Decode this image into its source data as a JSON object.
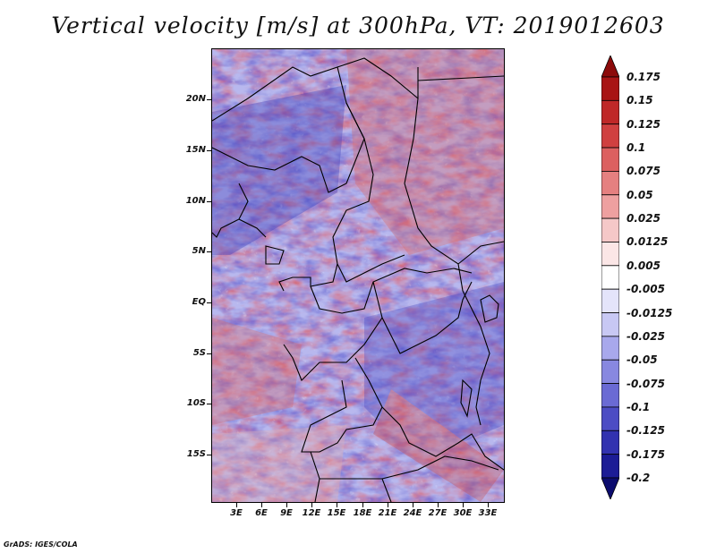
{
  "title": "Vertical velocity [m/s] at 300hPa, VT: 2019012603",
  "footer": "GrADS: IGES/COLA",
  "lat_labels": [
    "20N",
    "15N",
    "10N",
    "5N",
    "EQ",
    "5S",
    "10S",
    "15S"
  ],
  "lon_labels": [
    "3E",
    "6E",
    "9E",
    "12E",
    "15E",
    "18E",
    "21E",
    "24E",
    "27E",
    "30E",
    "33E"
  ],
  "colorbar": {
    "labels": [
      "0.175",
      "0.15",
      "0.125",
      "0.1",
      "0.075",
      "0.05",
      "0.025",
      "0.0125",
      "0.005",
      "-0.005",
      "-0.0125",
      "-0.025",
      "-0.05",
      "-0.075",
      "-0.1",
      "-0.125",
      "-0.175",
      "-0.2"
    ],
    "colors": [
      "#8c0a0a",
      "#a81414",
      "#bf2828",
      "#d04040",
      "#dc6060",
      "#e58080",
      "#eea0a0",
      "#f5c8c8",
      "#fbe6e6",
      "#ffffff",
      "#e4e4fa",
      "#c8c8f4",
      "#a8a8ec",
      "#8888e0",
      "#6a6ad4",
      "#4c4cc4",
      "#3232b0",
      "#1c1c96",
      "#0c0c6e"
    ]
  }
}
